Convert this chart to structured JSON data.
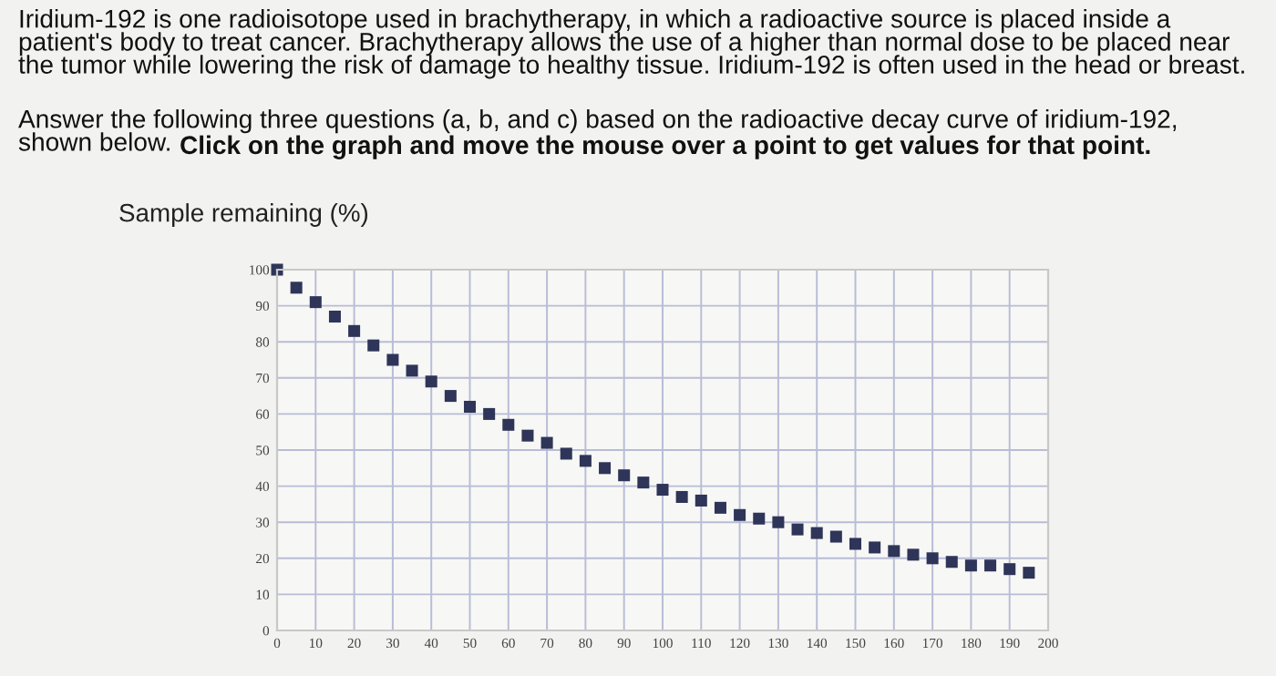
{
  "chart_data": {
    "type": "scatter",
    "ylabel": "Sample remaining (%)",
    "annotations": [
      "Iridium-192 is one radioisotope used in brachytherapy, in which a radioactive source is placed inside a\npatient's body to treat cancer. Brachytherapy allows the use of a higher than normal dose to be placed near\nthe tumor while lowering the risk of damage to healthy tissue. Iridium-192 is often used in the head or breast.",
      "Answer the following three questions (a, b, and c) based on the radioactive decay curve of iridium-192,\nshown below.",
      "Click on the graph and move the mouse over a point to get values for that point."
    ],
    "x": [
      0,
      5,
      10,
      15,
      20,
      25,
      30,
      35,
      40,
      45,
      50,
      55,
      60,
      65,
      70,
      75,
      80,
      85,
      90,
      95,
      100,
      105,
      110,
      115,
      120,
      125,
      130,
      135,
      140,
      145,
      150,
      155,
      160,
      165,
      170,
      175,
      180,
      185,
      190,
      195
    ],
    "series": [
      {
        "color": "#2e3558",
        "values": [
          100,
          95,
          91,
          87,
          83,
          79,
          75,
          72,
          69,
          65,
          62,
          60,
          57,
          54,
          52,
          49,
          47,
          45,
          43,
          41,
          39,
          37,
          36,
          34,
          32,
          31,
          30,
          28,
          27,
          26,
          24,
          23,
          22,
          21,
          20,
          19,
          18,
          18,
          17,
          16
        ]
      }
    ],
    "marker": "square",
    "grid": true,
    "legend": false,
    "xlim": [
      0,
      200
    ],
    "xticks": [
      0,
      10,
      20,
      30,
      40,
      50,
      60,
      70,
      80,
      90,
      100,
      110,
      120,
      130,
      140,
      150,
      160,
      170,
      180,
      190,
      200
    ],
    "ylim": [
      0,
      100
    ],
    "yticks": [
      0,
      10,
      20,
      30,
      40,
      50,
      60,
      70,
      80,
      90,
      100
    ]
  }
}
